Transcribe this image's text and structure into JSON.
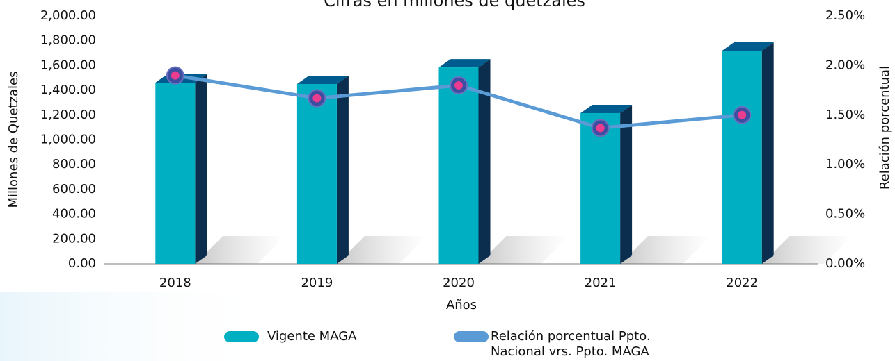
{
  "chart_data": {
    "type": "bar",
    "title": "Cifras en millones de quetzales",
    "x_label": "Años",
    "y_label": "Millones de Quetzales",
    "y2_label": "Relación porcentual",
    "categories": [
      "2018",
      "2019",
      "2020",
      "2021",
      "2022"
    ],
    "series": [
      {
        "name": "Vigente MAGA",
        "type": "bar",
        "color": "#00b0c2",
        "values": [
          1462,
          1451,
          1585,
          1216,
          1720
        ]
      },
      {
        "name": "Relación porcentual Ppto. Nacional vrs. Ppto. MAGA",
        "type": "line",
        "axis": "y2",
        "color": "#5b9bd5",
        "values": [
          1.9,
          1.67,
          1.8,
          1.37,
          1.5
        ]
      }
    ],
    "ylim": [
      0,
      2000
    ],
    "yticks": [
      {
        "value": 0,
        "label": "0.00"
      },
      {
        "value": 200,
        "label": "200.00"
      },
      {
        "value": 400,
        "label": "400.00"
      },
      {
        "value": 600,
        "label": "600.00"
      },
      {
        "value": 800,
        "label": "800.00"
      },
      {
        "value": 1000,
        "label": "1,000.00"
      },
      {
        "value": 1200,
        "label": "1,200.00"
      },
      {
        "value": 1400,
        "label": "1,400.00"
      },
      {
        "value": 1600,
        "label": "1,600.00"
      },
      {
        "value": 1800,
        "label": "1,800.00"
      },
      {
        "value": 2000,
        "label": "2,000.00"
      }
    ],
    "y2lim": [
      0,
      2.5
    ],
    "y2ticks": [
      {
        "value": 0,
        "label": "0.00%"
      },
      {
        "value": 0.5,
        "label": "0.50%"
      },
      {
        "value": 1,
        "label": "1.00%"
      },
      {
        "value": 1.5,
        "label": "1.50%"
      },
      {
        "value": 2,
        "label": "2.00%"
      },
      {
        "value": 2.5,
        "label": "2.50%"
      }
    ],
    "legend": "bottom"
  }
}
